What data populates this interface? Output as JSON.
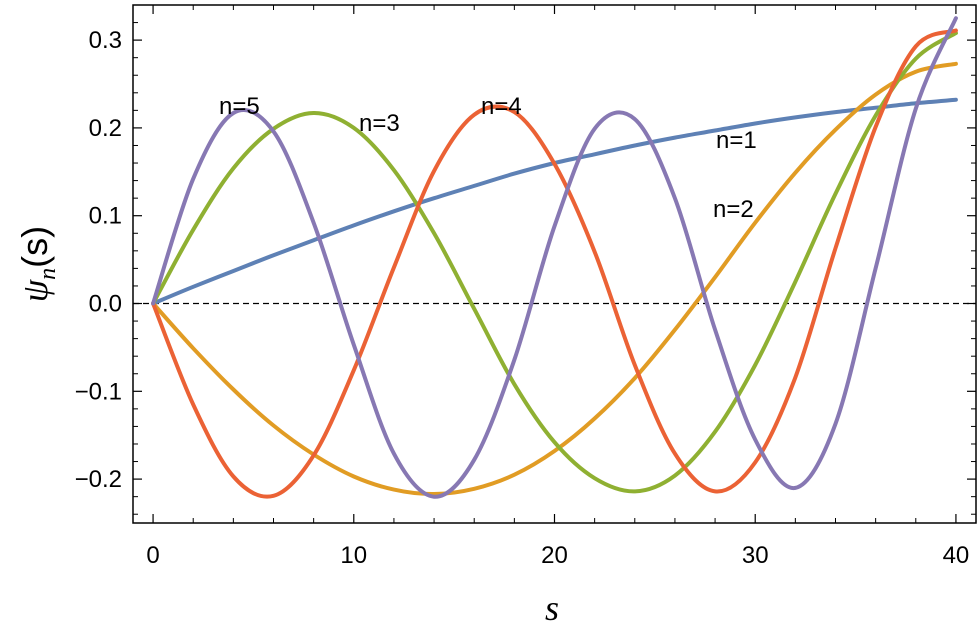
{
  "chart_data": {
    "type": "line",
    "title": "",
    "xlabel": "s",
    "ylabel_main": "ψ",
    "ylabel_sub": "n",
    "ylabel_tail": "(s)",
    "xlim": [
      -1,
      41
    ],
    "ylim": [
      -0.25,
      0.34
    ],
    "x_ticks": [
      0,
      10,
      20,
      30,
      40
    ],
    "x_tick_labels": [
      "0",
      "10",
      "20",
      "30",
      "40"
    ],
    "y_ticks": [
      -0.2,
      -0.1,
      0.0,
      0.1,
      0.2,
      0.3
    ],
    "y_tick_labels": [
      "−0.2",
      "−0.1",
      "0.0",
      "0.1",
      "0.2",
      "0.3"
    ],
    "reference_line": {
      "y": 0,
      "style": "dashed",
      "color": "#000000"
    },
    "grid": false,
    "legend": "none",
    "x": [
      0,
      2,
      4,
      6,
      8,
      10,
      12,
      14,
      16,
      18,
      20,
      22,
      24,
      26,
      28,
      30,
      32,
      34,
      36,
      38,
      40
    ],
    "series": [
      {
        "label": "n=1",
        "color": "#5e81b5",
        "values": [
          0.0,
          0.019,
          0.037,
          0.055,
          0.072,
          0.089,
          0.105,
          0.12,
          0.134,
          0.148,
          0.16,
          0.17,
          0.18,
          0.189,
          0.197,
          0.205,
          0.212,
          0.218,
          0.223,
          0.228,
          0.232
        ]
      },
      {
        "label": "n=2",
        "color": "#e19c24",
        "values": [
          0.0,
          -0.051,
          -0.098,
          -0.139,
          -0.172,
          -0.197,
          -0.212,
          -0.217,
          -0.211,
          -0.195,
          -0.168,
          -0.131,
          -0.085,
          -0.03,
          0.03,
          0.092,
          0.149,
          0.198,
          0.238,
          0.264,
          0.273
        ]
      },
      {
        "label": "n=3",
        "color": "#8fb032",
        "values": [
          0.0,
          0.084,
          0.154,
          0.199,
          0.217,
          0.2,
          0.152,
          0.08,
          -0.006,
          -0.092,
          -0.158,
          -0.199,
          -0.214,
          -0.196,
          -0.146,
          -0.07,
          0.025,
          0.125,
          0.214,
          0.279,
          0.308
        ]
      },
      {
        "label": "n=4",
        "color": "#eb6235",
        "values": [
          0.0,
          -0.115,
          -0.197,
          -0.219,
          -0.173,
          -0.076,
          0.041,
          0.151,
          0.215,
          0.218,
          0.159,
          0.059,
          -0.07,
          -0.171,
          -0.214,
          -0.181,
          -0.084,
          0.063,
          0.201,
          0.293,
          0.311
        ]
      },
      {
        "label": "n=5",
        "color": "#8778b3",
        "values": [
          0.0,
          0.142,
          0.217,
          0.196,
          0.092,
          -0.047,
          -0.171,
          -0.22,
          -0.178,
          -0.064,
          0.088,
          0.199,
          0.21,
          0.12,
          -0.03,
          -0.155,
          -0.21,
          -0.137,
          0.04,
          0.222,
          0.325
        ]
      }
    ]
  }
}
